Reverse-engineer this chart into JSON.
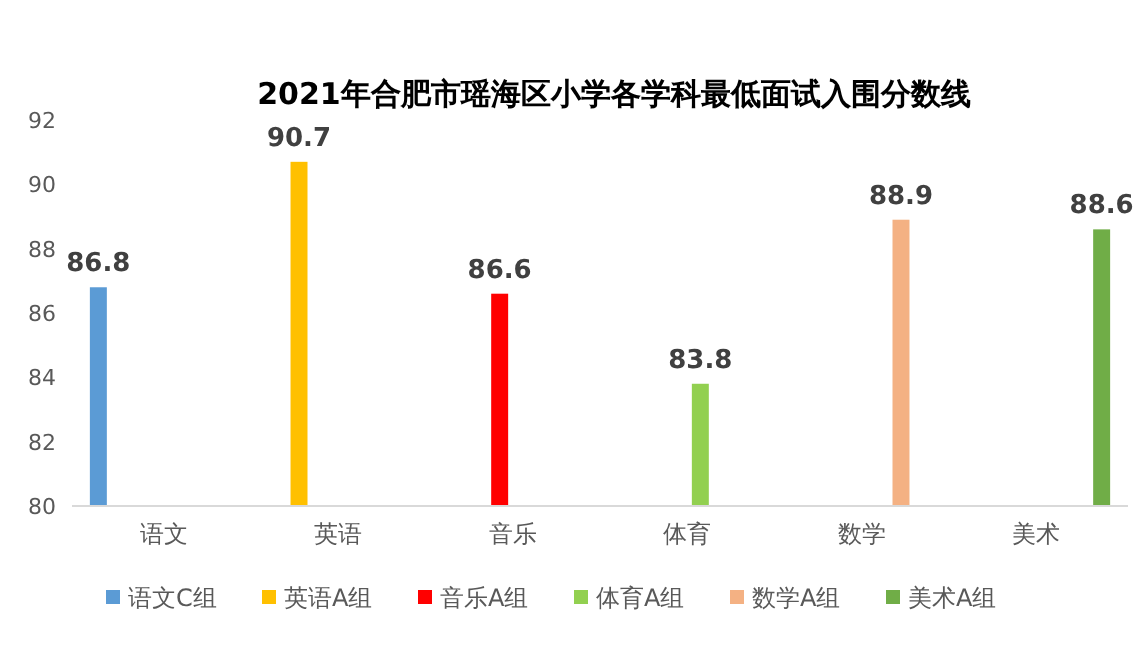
{
  "chart_data": {
    "type": "bar",
    "title": "2021年合肥市瑶海区小学各学科最低面试入围分数线",
    "categories": [
      "语文",
      "英语",
      "音乐",
      "体育",
      "数学",
      "美术"
    ],
    "series": [
      {
        "name": "语文C组",
        "color": "#5b9bd5",
        "values": [
          86.8,
          null,
          null,
          null,
          null,
          null
        ]
      },
      {
        "name": "英语A组",
        "color": "#ffc000",
        "values": [
          null,
          90.7,
          null,
          null,
          null,
          null
        ]
      },
      {
        "name": "音乐A组",
        "color": "#ff0000",
        "values": [
          null,
          null,
          86.6,
          null,
          null,
          null
        ]
      },
      {
        "name": "体育A组",
        "color": "#92d050",
        "values": [
          null,
          null,
          null,
          83.8,
          null,
          null
        ]
      },
      {
        "name": "数学A组",
        "color": "#f4b183",
        "values": [
          null,
          null,
          null,
          null,
          88.9,
          null
        ]
      },
      {
        "name": "美术A组",
        "color": "#70ad47",
        "values": [
          null,
          null,
          null,
          null,
          null,
          88.6
        ]
      }
    ],
    "ylim": [
      80,
      92
    ],
    "yticks": [
      80,
      82,
      84,
      86,
      88,
      90,
      92
    ],
    "data_labels": true,
    "legend": "bottom"
  }
}
